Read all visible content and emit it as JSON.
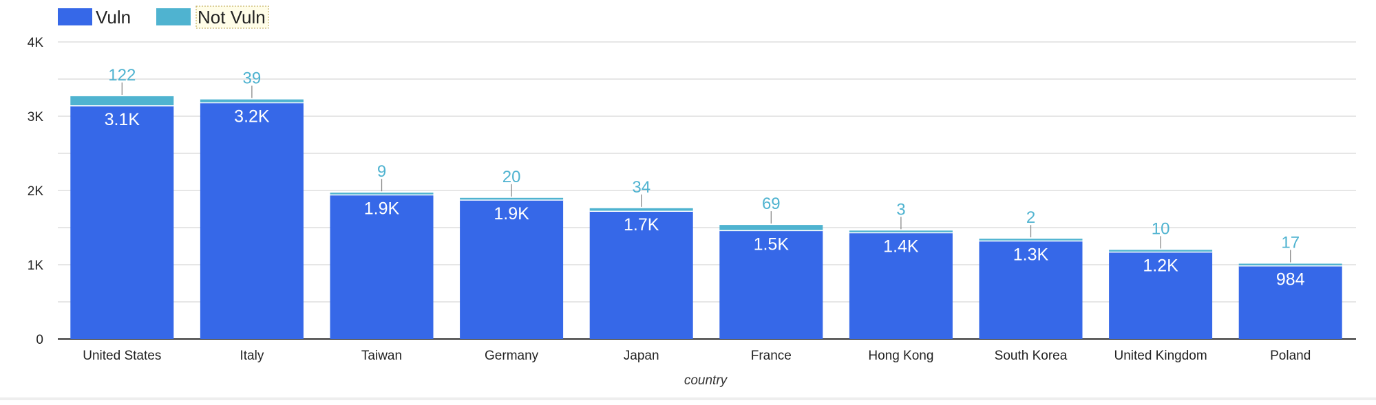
{
  "chart_data": {
    "type": "bar",
    "stacked": true,
    "xlabel": "country",
    "ylabel": "",
    "ylim": [
      0,
      4000
    ],
    "y_ticks": [
      {
        "value": 0,
        "label": "0"
      },
      {
        "value": 1000,
        "label": "1K"
      },
      {
        "value": 2000,
        "label": "2K"
      },
      {
        "value": 3000,
        "label": "3K"
      },
      {
        "value": 4000,
        "label": "4K"
      }
    ],
    "grid": true,
    "legend_position": "top-left",
    "categories": [
      "United States",
      "Italy",
      "Taiwan",
      "Germany",
      "Japan",
      "France",
      "Hong Kong",
      "South Korea",
      "United Kingdom",
      "Poland"
    ],
    "series": [
      {
        "name": "Vuln",
        "color": "#3668e8",
        "values": [
          3140,
          3180,
          1940,
          1870,
          1720,
          1460,
          1430,
          1320,
          1170,
          984
        ],
        "labels": [
          "3.1K",
          "3.2K",
          "1.9K",
          "1.9K",
          "1.7K",
          "1.5K",
          "1.4K",
          "1.3K",
          "1.2K",
          "984"
        ]
      },
      {
        "name": "Not Vuln",
        "color": "#4fb3d0",
        "values": [
          122,
          39,
          9,
          20,
          34,
          69,
          3,
          2,
          10,
          17
        ],
        "labels": [
          "122",
          "39",
          "9",
          "20",
          "34",
          "69",
          "3",
          "2",
          "10",
          "17"
        ]
      }
    ]
  }
}
